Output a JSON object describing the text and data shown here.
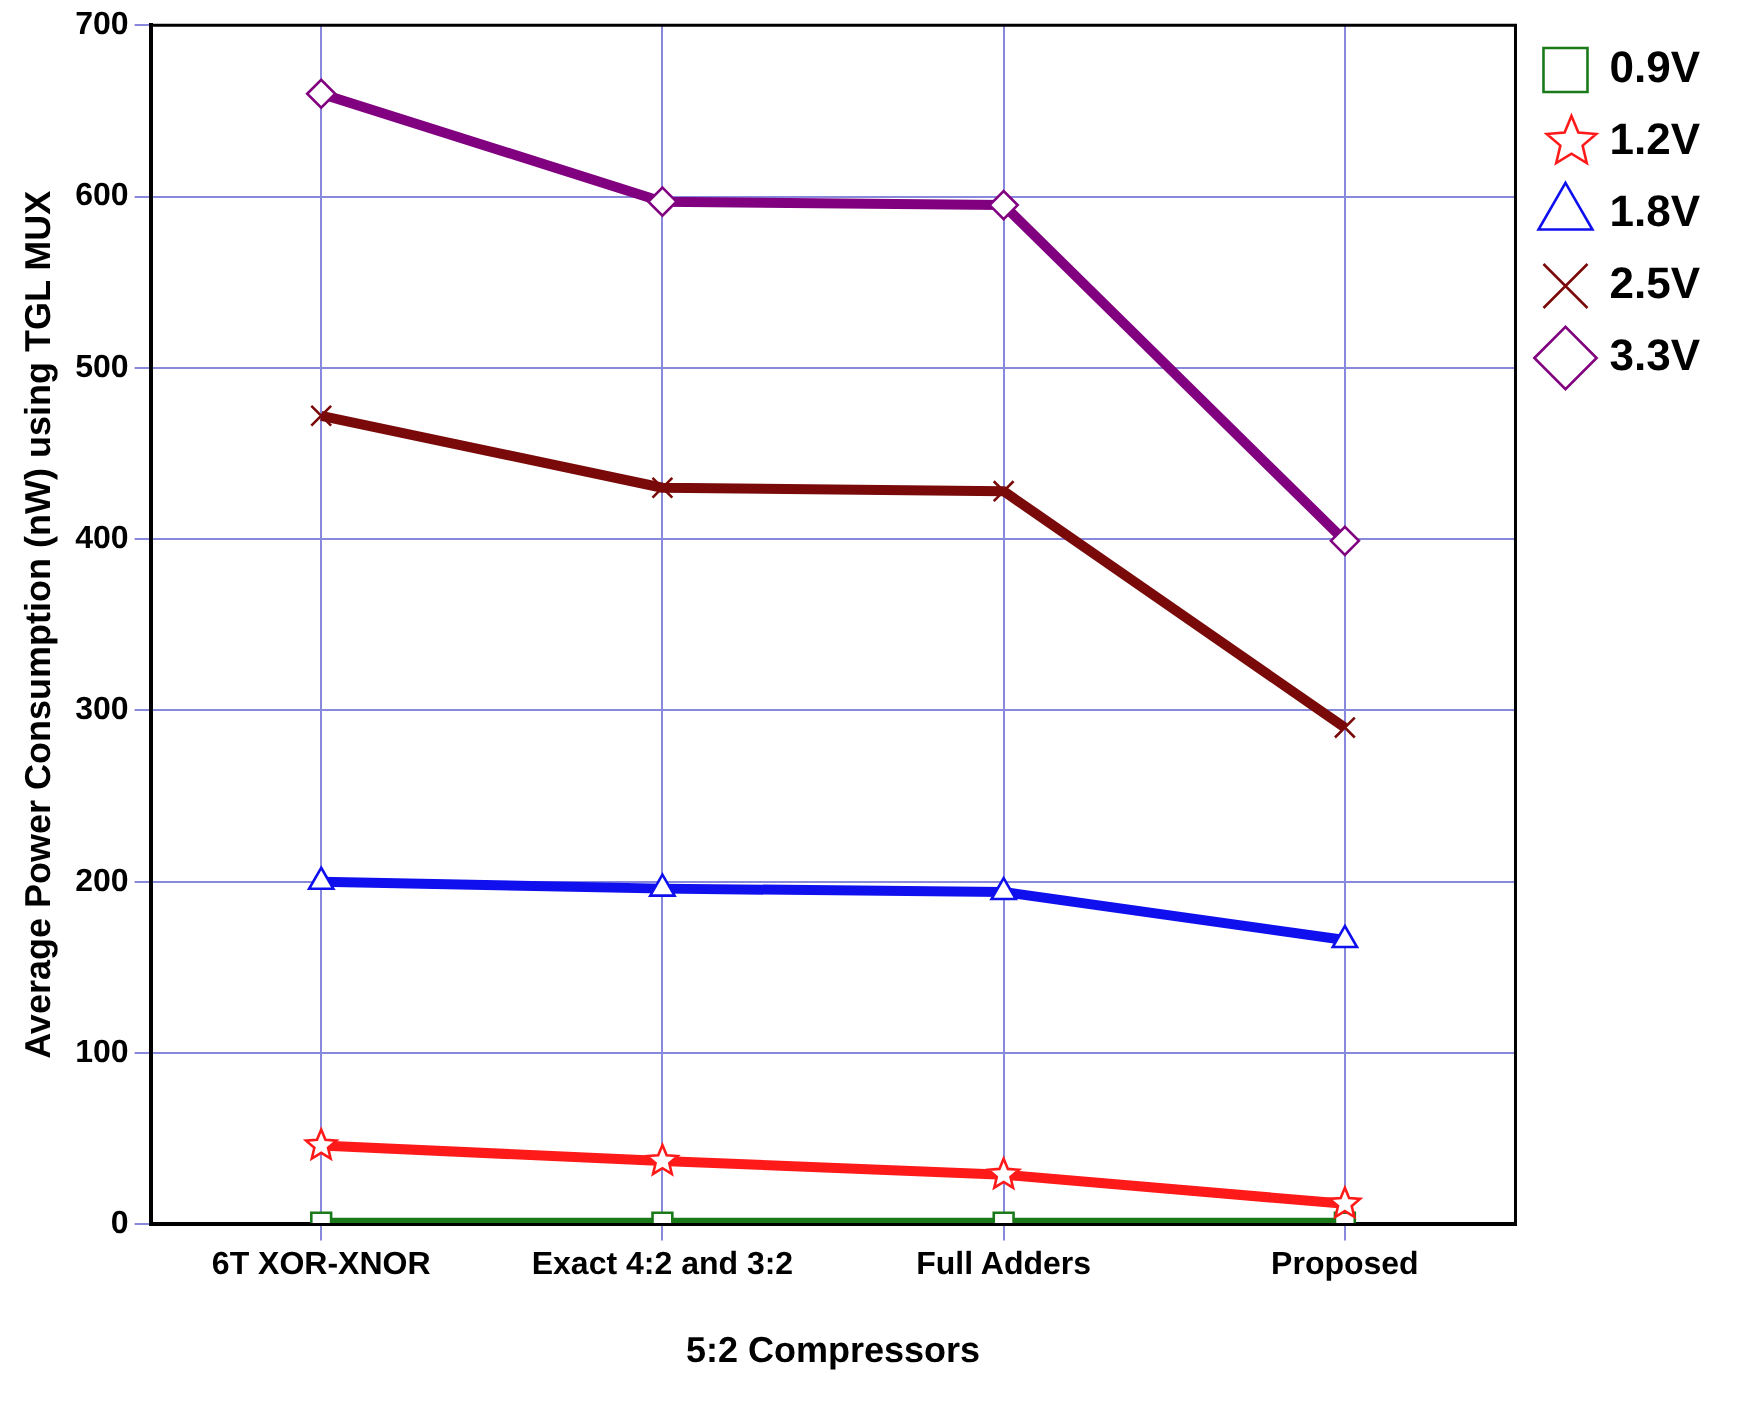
{
  "chart_data": {
    "type": "line",
    "xlabel": "5:2 Compressors",
    "ylabel": "Average Power Consumption (nW) using TGL MUX",
    "categories": [
      "6T XOR-XNOR",
      "Exact 4:2 and 3:2",
      "Full Adders",
      "Proposed"
    ],
    "series": [
      {
        "name": "0.9V",
        "color": "#1a7a1a",
        "marker": "square",
        "values": [
          1,
          1,
          1,
          1
        ]
      },
      {
        "name": "1.2V",
        "color": "#ff1a1a",
        "marker": "star",
        "values": [
          46,
          37,
          29,
          12
        ]
      },
      {
        "name": "1.8V",
        "color": "#1010ee",
        "marker": "triangle",
        "values": [
          200,
          196,
          194,
          166
        ]
      },
      {
        "name": "2.5V",
        "color": "#7a0a0a",
        "marker": "cross",
        "values": [
          472,
          430,
          428,
          290
        ]
      },
      {
        "name": "3.3V",
        "color": "#800080",
        "marker": "diamond",
        "values": [
          660,
          597,
          595,
          399
        ]
      }
    ],
    "ylim": [
      0,
      700
    ],
    "yticks": [
      0,
      100,
      200,
      300,
      400,
      500,
      600,
      700
    ],
    "grid": true,
    "legend": "top right"
  }
}
